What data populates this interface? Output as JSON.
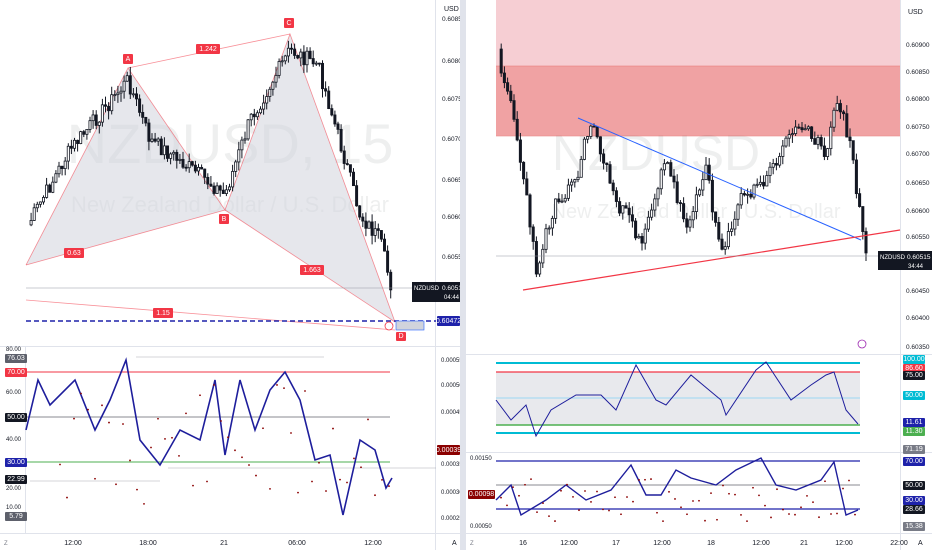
{
  "left": {
    "watermark": "NZDUSD, 15",
    "watermark_sub": "New Zealand Dollar / U.S. Dollar",
    "currency": "USD",
    "price_ticks": [
      "0.60850",
      "0.60800",
      "0.60750",
      "0.60700",
      "0.60650",
      "0.60600",
      "0.60550",
      "0.60500"
    ],
    "price_tag": {
      "symbol": "NZDUSD",
      "value": "0.60515",
      "timer": "04:44"
    },
    "target_tag": "0.60472",
    "pattern_labels": {
      "A": "A",
      "B": "B",
      "C": "C",
      "D": "D"
    },
    "ratios": {
      "xa": "0.63",
      "ab": "1.242",
      "bc": "1.663",
      "xd": "1.15"
    },
    "osc_ticks": [
      "80.00",
      "60.00",
      "40.00",
      "20.00",
      "10.00"
    ],
    "osc_badges": {
      "top": "76.03",
      "upper": "70.00",
      "mid": "50.00",
      "lower": "30.00",
      "cur": "22.99",
      "low": "5.79"
    },
    "osc2_ticks": [
      "0.00055",
      "0.00050",
      "0.00045",
      "0.00035",
      "0.00030",
      "0.00025"
    ],
    "osc2_badge": "0.00039",
    "time_ticks": [
      "12:00",
      "18:00",
      "21",
      "06:00",
      "12:00"
    ],
    "corner": "A",
    "corner_left": "Z"
  },
  "right": {
    "watermark": "NZDUSD",
    "watermark_sub": "New Zealand Dollar / U.S. Dollar",
    "currency": "USD",
    "price_ticks": [
      "0.60900",
      "0.60850",
      "0.60800",
      "0.60750",
      "0.60700",
      "0.60650",
      "0.60600",
      "0.60550",
      "0.60450",
      "0.60400",
      "0.60350"
    ],
    "price_tag": {
      "symbol": "NZDUSD",
      "value": "0.60515",
      "timer": "34:44"
    },
    "osc_badges": [
      "100.00",
      "86.60",
      "75.00",
      "50.00",
      "11.61",
      "11.30",
      "71.19"
    ],
    "osc2_ticks": [
      "0.00150",
      "0.00050"
    ],
    "osc2_left_badge": "0.00098",
    "osc2_badges": [
      "70.00",
      "50.00",
      "30.00",
      "28.66",
      "15.38"
    ],
    "time_ticks": [
      "16",
      "12:00",
      "17",
      "12:00",
      "18",
      "12:00",
      "21",
      "12:00",
      "22:00"
    ],
    "corner": "A",
    "corner_left": "Z"
  },
  "colors": {
    "candle": "#131722",
    "pattern_fill": "#d1d4dc",
    "pattern_line": "#f23645",
    "label_bg": "#f23645",
    "osc_line": "#1e1e9c",
    "osc_red": "#f23645",
    "osc_green": "#4caf50",
    "dash_blue": "#1e22aa",
    "zone_light": "#f5c6cb",
    "zone_dark": "#ef9a9a",
    "trend_blue": "#2962ff",
    "cyan": "#00bcd4"
  },
  "chart_data": [
    {
      "type": "candlestick",
      "title": "NZDUSD, 15",
      "ylabel": "USD",
      "ylim": [
        0.6044,
        0.6086
      ],
      "x": [
        "12:00",
        "18:00",
        "21",
        "06:00",
        "12:00"
      ],
      "pattern": {
        "X": 0.6058,
        "A": 0.60785,
        "B": 0.60615,
        "C": 0.6083,
        "D": 0.6046
      },
      "last": 0.60515
    },
    {
      "type": "candlestick",
      "title": "NZDUSD",
      "ylabel": "USD",
      "ylim": [
        0.6034,
        0.6092
      ],
      "x": [
        "16",
        "12:00",
        "17",
        "12:00",
        "18",
        "12:00",
        "21",
        "12:00",
        "22:00"
      ],
      "supply_zone": [
        0.60735,
        0.60915
      ],
      "last": 0.60515
    }
  ]
}
